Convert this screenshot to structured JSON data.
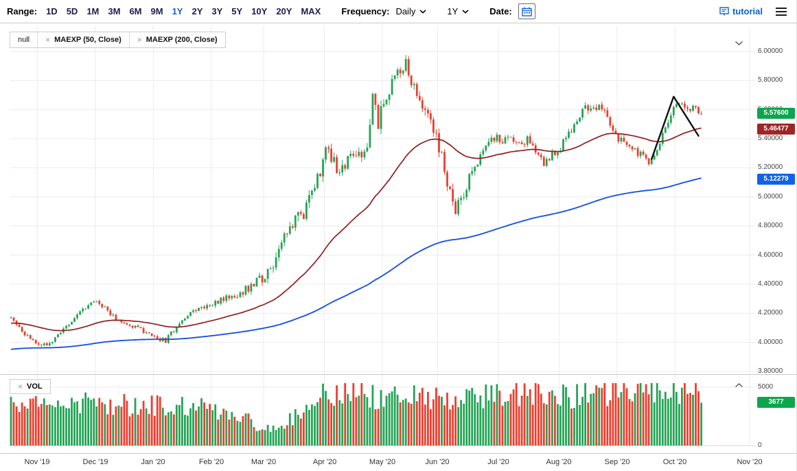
{
  "toolbar": {
    "range_label": "Range:",
    "range_options": [
      "1D",
      "5D",
      "1M",
      "3M",
      "6M",
      "9M",
      "1Y",
      "2Y",
      "3Y",
      "5Y",
      "10Y",
      "20Y",
      "MAX"
    ],
    "range_selected": "1Y",
    "frequency_label": "Frequency:",
    "frequency_value": "Daily",
    "period_value": "1Y",
    "date_label": "Date:",
    "tutorial_label": "tutorial"
  },
  "price_panel": {
    "legend": {
      "series_name": "null",
      "close_icon": "×",
      "indicators": [
        {
          "label": "MAEXP (50, Close)"
        },
        {
          "label": "MAEXP (200, Close)"
        }
      ]
    }
  },
  "volume_panel": {
    "legend": {
      "close_icon": "×",
      "label": "VOL"
    }
  },
  "badges": {
    "last_price": {
      "text": "5.57600",
      "value": 5.576,
      "color": "#0ca64c"
    },
    "ema50": {
      "text": "5.46477",
      "value": 5.46477,
      "color": "#a02626"
    },
    "ema200": {
      "text": "5.12279",
      "value": 5.12279,
      "color": "#1162e8"
    },
    "volume": {
      "text": "3677",
      "value": 3677,
      "color": "#0ca64c"
    }
  },
  "chart_data": {
    "type": "candlestick",
    "title": "",
    "x_labels": [
      "Nov '19",
      "Dec '19",
      "Jan '20",
      "Feb '20",
      "Mar '20",
      "Apr '20",
      "May '20",
      "Jun '20",
      "Jul '20",
      "Aug '20",
      "Sep '20",
      "Oct '20",
      "Nov '20"
    ],
    "month_slots": [
      10,
      31,
      52,
      73,
      92,
      114,
      135,
      155,
      177,
      199,
      220,
      241,
      268
    ],
    "num_slots": 270,
    "num_candles": 251,
    "price_ticks": [
      "6.00000",
      "5.80000",
      "5.60000",
      "5.40000",
      "5.20000",
      "5.00000",
      "4.80000",
      "4.60000",
      "4.40000",
      "4.20000",
      "4.00000",
      "3.80000"
    ],
    "price_ylim": [
      3.8,
      6.0
    ],
    "volume_ticks": [
      "5000",
      "0"
    ],
    "volume_axis_max": 5000,
    "series": [
      {
        "name": "null",
        "type": "candlestick"
      },
      {
        "name": "MAEXP (50, Close)",
        "type": "line",
        "color": "#8f1d1d",
        "last_value": 5.46477
      },
      {
        "name": "MAEXP (200, Close)",
        "type": "line",
        "color": "#1a53e0",
        "last_value": 5.12279
      },
      {
        "name": "VOL",
        "type": "bar",
        "last_value": 3677
      }
    ],
    "last_close": 5.576,
    "last_volume": 3677,
    "price_path": [
      [
        0,
        4.17
      ],
      [
        3,
        4.1
      ],
      [
        8,
        4.0
      ],
      [
        14,
        3.99
      ],
      [
        20,
        4.1
      ],
      [
        25,
        4.21
      ],
      [
        28,
        4.26
      ],
      [
        31,
        4.29
      ],
      [
        34,
        4.24
      ],
      [
        38,
        4.16
      ],
      [
        43,
        4.12
      ],
      [
        47,
        4.09
      ],
      [
        52,
        4.03
      ],
      [
        56,
        4.01
      ],
      [
        60,
        4.11
      ],
      [
        64,
        4.19
      ],
      [
        68,
        4.23
      ],
      [
        73,
        4.27
      ],
      [
        78,
        4.3
      ],
      [
        83,
        4.34
      ],
      [
        87,
        4.39
      ],
      [
        91,
        4.45
      ],
      [
        95,
        4.56
      ],
      [
        99,
        4.7
      ],
      [
        103,
        4.83
      ],
      [
        106,
        4.9
      ],
      [
        109,
        5.05
      ],
      [
        112,
        5.19
      ],
      [
        114,
        5.32
      ],
      [
        117,
        5.24
      ],
      [
        119,
        5.15
      ],
      [
        122,
        5.24
      ],
      [
        126,
        5.3
      ],
      [
        129,
        5.35
      ],
      [
        131,
        5.7
      ],
      [
        133,
        5.52
      ],
      [
        136,
        5.68
      ],
      [
        139,
        5.82
      ],
      [
        142,
        5.9
      ],
      [
        143,
        5.93
      ],
      [
        145,
        5.8
      ],
      [
        148,
        5.7
      ],
      [
        151,
        5.55
      ],
      [
        154,
        5.42
      ],
      [
        156,
        5.3
      ],
      [
        159,
        5.02
      ],
      [
        161,
        4.9
      ],
      [
        163,
        4.98
      ],
      [
        166,
        5.12
      ],
      [
        168,
        5.22
      ],
      [
        171,
        5.31
      ],
      [
        174,
        5.38
      ],
      [
        176,
        5.43
      ],
      [
        178,
        5.36
      ],
      [
        181,
        5.42
      ],
      [
        184,
        5.36
      ],
      [
        187,
        5.39
      ],
      [
        190,
        5.33
      ],
      [
        193,
        5.24
      ],
      [
        196,
        5.3
      ],
      [
        199,
        5.34
      ],
      [
        202,
        5.42
      ],
      [
        205,
        5.52
      ],
      [
        208,
        5.61
      ],
      [
        210,
        5.64
      ],
      [
        212,
        5.58
      ],
      [
        214,
        5.63
      ],
      [
        216,
        5.55
      ],
      [
        218,
        5.47
      ],
      [
        220,
        5.4
      ],
      [
        223,
        5.34
      ],
      [
        226,
        5.31
      ],
      [
        229,
        5.28
      ],
      [
        231,
        5.24
      ],
      [
        234,
        5.3
      ],
      [
        236,
        5.42
      ],
      [
        238,
        5.52
      ],
      [
        240,
        5.62
      ],
      [
        242,
        5.66
      ],
      [
        244,
        5.62
      ],
      [
        246,
        5.6
      ],
      [
        248,
        5.62
      ],
      [
        250,
        5.576
      ]
    ],
    "noise_amp": [
      [
        0,
        0.016
      ],
      [
        40,
        0.015
      ],
      [
        70,
        0.018
      ],
      [
        88,
        0.03
      ],
      [
        95,
        0.05
      ],
      [
        105,
        0.055
      ],
      [
        112,
        0.05
      ],
      [
        120,
        0.045
      ],
      [
        128,
        0.05
      ],
      [
        133,
        0.06
      ],
      [
        138,
        0.05
      ],
      [
        143,
        0.035
      ],
      [
        147,
        0.05
      ],
      [
        155,
        0.055
      ],
      [
        160,
        0.05
      ],
      [
        166,
        0.04
      ],
      [
        172,
        0.032
      ],
      [
        185,
        0.028
      ],
      [
        200,
        0.03
      ],
      [
        210,
        0.032
      ],
      [
        220,
        0.028
      ],
      [
        232,
        0.024
      ],
      [
        240,
        0.03
      ],
      [
        250,
        0.022
      ]
    ],
    "volume_profile": [
      [
        0,
        3500
      ],
      [
        15,
        3600
      ],
      [
        30,
        3600
      ],
      [
        50,
        3400
      ],
      [
        70,
        3300
      ],
      [
        85,
        2600
      ],
      [
        90,
        1400
      ],
      [
        96,
        1500
      ],
      [
        101,
        2200
      ],
      [
        106,
        3200
      ],
      [
        110,
        4200
      ],
      [
        114,
        4900
      ],
      [
        120,
        4600
      ],
      [
        126,
        4900
      ],
      [
        132,
        4300
      ],
      [
        138,
        4600
      ],
      [
        144,
        4300
      ],
      [
        150,
        4400
      ],
      [
        156,
        4100
      ],
      [
        162,
        4300
      ],
      [
        168,
        4100
      ],
      [
        175,
        4300
      ],
      [
        183,
        4200
      ],
      [
        191,
        4300
      ],
      [
        199,
        4400
      ],
      [
        207,
        4300
      ],
      [
        215,
        4500
      ],
      [
        223,
        4400
      ],
      [
        230,
        4600
      ],
      [
        237,
        4700
      ],
      [
        243,
        4600
      ],
      [
        248,
        4300
      ],
      [
        250,
        3677
      ]
    ],
    "ema50_seed": 4.13,
    "ema200_seed": 3.95,
    "seed": 11,
    "trendline": {
      "color": "#111111",
      "points_slot_price": [
        [
          232,
          5.26
        ],
        [
          240,
          5.69
        ],
        [
          249,
          5.42
        ]
      ]
    },
    "colors": {
      "up": "#23a455",
      "down": "#ee3d2d",
      "ema50": "#8f1d1d",
      "ema200": "#1a53e0",
      "grid": "#ebebeb"
    }
  }
}
